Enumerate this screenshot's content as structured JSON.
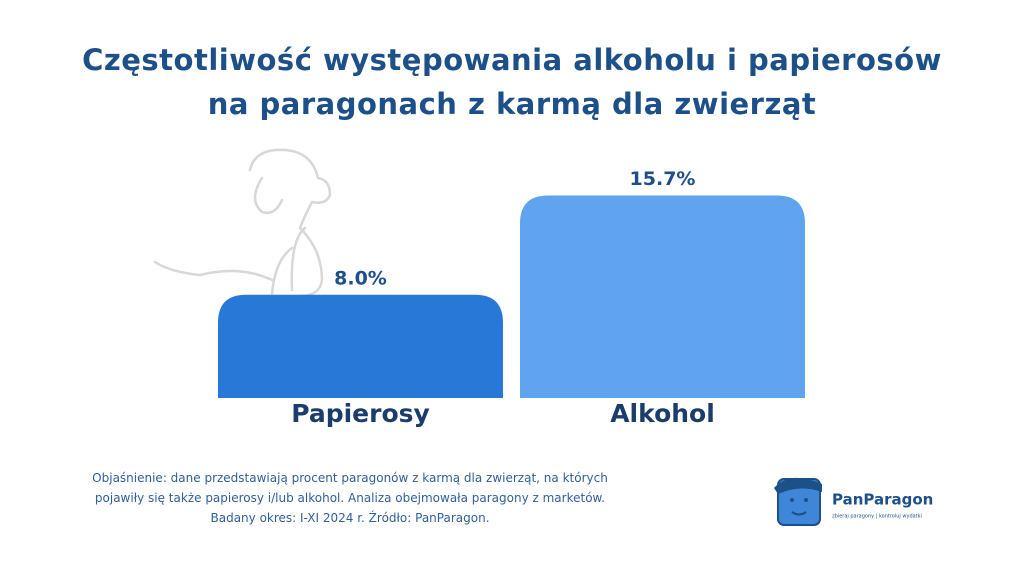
{
  "chart_data": {
    "type": "bar",
    "title": "Częstotliwość występowania alkoholu i papierosów na paragonach z karmą dla zwierząt",
    "categories": [
      "Papierosy",
      "Alkohol"
    ],
    "values": [
      8.0,
      15.7
    ],
    "value_labels": [
      "8.0%",
      "15.7%"
    ],
    "colors": [
      "#2878d8",
      "#60a3ee"
    ]
  },
  "footnote": "Objaśnienie: dane przedstawiają procent paragonów z karmą dla zwierząt, na których pojawiły się także papierosy i/lub alkohol.  Analiza obejmowała paragony z marketów. Badany okres: I-XI 2024 r. Źródło: PanParagon.",
  "brand": {
    "name": "PanParagon",
    "tagline": "zbieraj paragony | kontroluj wydatki"
  }
}
